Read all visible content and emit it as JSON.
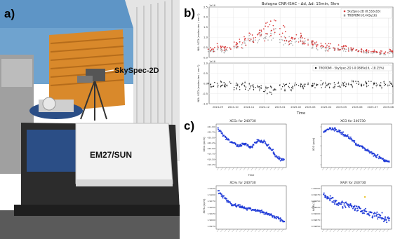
{
  "labels": {
    "a": "a)",
    "b": "b)",
    "c": "c)"
  },
  "photo": {
    "callout_skyspec": "SkySpec-2D",
    "callout_em27": "EM27/SUN",
    "colors": {
      "sky": "#6fa3cf",
      "building": "#d9892b",
      "wall": "#dedede",
      "instrument_base": "#2b4e86",
      "box": "#f2f2f2"
    }
  },
  "panel_b": {
    "title": "Bologna CNR-ISAC - Δd, Δd: 15min, 5km",
    "xlabel": "Time",
    "x_ticks": [
      "2024-09",
      "2024-10",
      "2024-11",
      "2024-12",
      "2025-01",
      "2025-02",
      "2025-03",
      "2025-04",
      "2025-05",
      "2025-06",
      "2025-07",
      "2025-08"
    ],
    "top": {
      "ylabel": "NO₂ VCD (molecules / cm⁻²)",
      "ylim": [
        0,
        2.5
      ],
      "y_ticks": [
        "0.0",
        "0.5",
        "1.0",
        "1.5",
        "2.0",
        "2.5"
      ],
      "exponent": "1e16",
      "legend": [
        "SkySpec-2D (0.532e16)",
        "TROPOMI (0.443e16)"
      ],
      "colors": {
        "skyspec": "#d93636",
        "tropomi": "#9a9a9a"
      }
    },
    "bottom": {
      "ylabel": "NO₂ VCD (molecules / cm⁻²)",
      "ylim": [
        -1.0,
        1.0
      ],
      "y_ticks": [
        "1.0",
        "0.5",
        "0.0",
        "-0.5",
        "-1.0"
      ],
      "exponent": "1e16",
      "legend": [
        "TROPOMI - SkySpec-2D (-0.0889e16, -18.25%)"
      ],
      "color": "#111111"
    }
  },
  "panel_c": {
    "marker_color": "#1a35d6",
    "outlier_color": "#e8c01a",
    "xlabel": "Time",
    "plots": [
      {
        "title": "XCO₂ for 240730",
        "ylabel": "XCO₂ (ppm)",
        "y_ticks": [
          "421.00",
          "420.75",
          "420.50",
          "420.25",
          "420.00",
          "419.75",
          "419.50",
          "419.25"
        ]
      },
      {
        "title": "XCO for 240730",
        "ylabel": "XCO (ppb)",
        "y_ticks": [
          "",
          "",
          "",
          "",
          ""
        ]
      },
      {
        "title": "XCH₄ for 240730",
        "ylabel": "XCH₄ (ppm)",
        "y_ticks": [
          "1.9125",
          "1.9100",
          "1.9075",
          "1.9050",
          "1.9025",
          "1.9000",
          "1.8975"
        ]
      },
      {
        "title": "XAIR for 240730",
        "ylabel": "XAIR (1)",
        "y_ticks": [
          "1.00000",
          "0.99975",
          "0.99950",
          "0.99925",
          "0.99900",
          "0.99875",
          "0.99850"
        ]
      }
    ]
  },
  "chart_data": [
    {
      "type": "scatter",
      "title": "Bologna CNR-ISAC - Δd, Δd: 15min, 5km",
      "xlabel": "Time",
      "ylabel": "NO₂ VCD (molecules / cm⁻²)",
      "ylim": [
        0,
        2.5
      ],
      "x": [
        "2024-08-20",
        "2024-09-05",
        "2024-09-20",
        "2024-10-05",
        "2024-10-20",
        "2024-11-05",
        "2024-11-20",
        "2024-12-05",
        "2024-12-20",
        "2025-01-05",
        "2025-01-20",
        "2025-02-05",
        "2025-02-20",
        "2025-03-05",
        "2025-03-20",
        "2025-04-05",
        "2025-04-20",
        "2025-05-05",
        "2025-05-20",
        "2025-06-05",
        "2025-06-20",
        "2025-07-05",
        "2025-07-20",
        "2025-08-05"
      ],
      "series": [
        {
          "name": "SkySpec-2D (0.532e16)",
          "values": [
            0.4,
            0.5,
            0.45,
            0.6,
            0.8,
            1.0,
            1.1,
            1.3,
            1.5,
            1.2,
            0.9,
            1.0,
            0.8,
            0.7,
            0.6,
            0.5,
            0.45,
            0.5,
            0.4,
            0.35,
            0.3,
            0.3,
            0.25,
            0.3
          ]
        },
        {
          "name": "TROPOMI (0.443e16)",
          "values": [
            0.3,
            0.4,
            0.35,
            0.5,
            0.7,
            0.85,
            0.95,
            1.1,
            1.2,
            1.0,
            0.75,
            0.85,
            0.7,
            0.6,
            0.5,
            0.45,
            0.4,
            0.4,
            0.35,
            0.3,
            0.25,
            0.25,
            0.2,
            0.25
          ]
        }
      ]
    },
    {
      "type": "scatter",
      "xlabel": "Time",
      "ylabel": "NO₂ VCD (molecules / cm⁻²)",
      "ylim": [
        -1.0,
        1.0
      ],
      "x": [
        "2024-08-20",
        "2024-09-05",
        "2024-09-20",
        "2024-10-05",
        "2024-10-20",
        "2024-11-05",
        "2024-11-20",
        "2024-12-05",
        "2024-12-20",
        "2025-01-05",
        "2025-01-20",
        "2025-02-05",
        "2025-02-20",
        "2025-03-05",
        "2025-03-20",
        "2025-04-05",
        "2025-04-20",
        "2025-05-05",
        "2025-05-20",
        "2025-06-05",
        "2025-06-20",
        "2025-07-05",
        "2025-07-20",
        "2025-08-05"
      ],
      "series": [
        {
          "name": "TROPOMI - SkySpec-2D (-0.0889e16, -18.25%)",
          "values": [
            -0.1,
            -0.1,
            -0.05,
            -0.15,
            -0.1,
            -0.2,
            -0.15,
            -0.3,
            -0.35,
            -0.2,
            -0.15,
            -0.1,
            -0.1,
            -0.1,
            -0.05,
            -0.05,
            -0.05,
            -0.1,
            -0.05,
            -0.05,
            -0.05,
            -0.05,
            -0.05,
            -0.05
          ]
        }
      ]
    },
    {
      "type": "scatter",
      "title": "XCO₂ for 240730",
      "xlabel": "Time",
      "ylabel": "XCO₂ (ppm)",
      "ylim": [
        419.2,
        421.05
      ],
      "x_index": [
        0,
        10,
        20,
        30,
        40,
        50,
        60,
        70,
        80,
        90,
        100
      ],
      "series": [
        {
          "values": [
            420.95,
            420.55,
            420.3,
            420.1,
            420.2,
            420.05,
            420.4,
            420.3,
            419.95,
            419.55,
            419.45
          ]
        }
      ]
    },
    {
      "type": "scatter",
      "title": "XCO for 240730",
      "xlabel": "Time",
      "ylabel": "XCO (ppb)",
      "x_index": [
        0,
        10,
        20,
        30,
        40,
        50,
        60,
        70,
        80,
        90,
        100
      ],
      "series": [
        {
          "values": [
            0.85,
            0.95,
            0.9,
            0.8,
            0.7,
            0.55,
            0.45,
            0.35,
            0.25,
            0.15,
            0.08
          ]
        }
      ]
    },
    {
      "type": "scatter",
      "title": "XCH₄ for 240730",
      "xlabel": "Time",
      "ylabel": "XCH₄ (ppm)",
      "ylim": [
        1.8965,
        1.913
      ],
      "x_index": [
        0,
        10,
        20,
        30,
        40,
        50,
        60,
        70,
        80,
        90,
        100
      ],
      "series": [
        {
          "values": [
            1.9115,
            1.9085,
            1.906,
            1.9055,
            1.9045,
            1.904,
            1.9035,
            1.9025,
            1.9015,
            1.9005,
            1.8985
          ]
        }
      ]
    },
    {
      "type": "scatter",
      "title": "XAIR for 240730",
      "xlabel": "Time",
      "ylabel": "XAIR (1)",
      "ylim": [
        0.9984,
        1.0001
      ],
      "x_index": [
        0,
        10,
        20,
        30,
        40,
        50,
        60,
        70,
        80,
        90,
        100
      ],
      "series": [
        {
          "values": [
            0.99975,
            0.99965,
            0.9995,
            0.9994,
            0.9993,
            0.9992,
            0.9991,
            0.999,
            0.9989,
            0.9988,
            0.9987
          ]
        }
      ]
    }
  ]
}
